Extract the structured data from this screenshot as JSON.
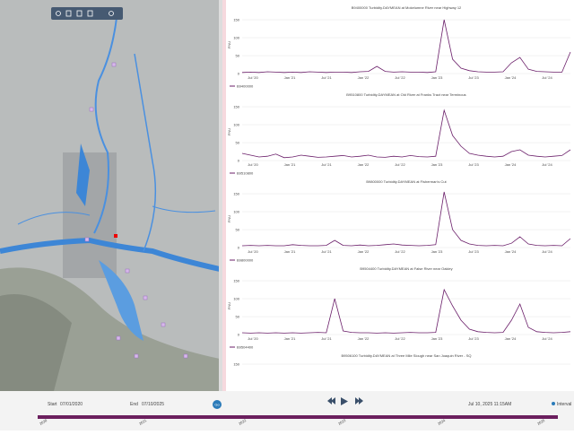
{
  "panels": [
    {
      "title": "B9400000 Turbidity.DAYMEAN at Mokelumne River near Highway 12",
      "legend": "B9400000",
      "y_label": "FNU",
      "ylim": [
        0,
        160
      ],
      "yticks": [
        0,
        50,
        100,
        150
      ],
      "values": [
        3,
        4,
        3,
        5,
        4,
        3,
        4,
        3,
        5,
        4,
        3,
        4,
        4,
        3,
        5,
        6,
        20,
        6,
        4,
        5,
        4,
        4,
        3,
        5,
        150,
        40,
        15,
        8,
        5,
        4,
        4,
        5,
        30,
        45,
        12,
        6,
        5,
        4,
        4,
        60
      ]
    },
    {
      "title": "B9510800 Turbidity.DAYMEAN at Old River at Franks Tract near Terminous",
      "legend": "B9510800",
      "y_label": "FNU",
      "ylim": [
        0,
        160
      ],
      "yticks": [
        0,
        50,
        100,
        150
      ],
      "values": [
        20,
        15,
        10,
        12,
        18,
        8,
        10,
        15,
        12,
        9,
        10,
        12,
        14,
        10,
        12,
        15,
        10,
        9,
        12,
        10,
        14,
        11,
        10,
        12,
        140,
        70,
        40,
        20,
        15,
        12,
        10,
        12,
        25,
        30,
        15,
        12,
        10,
        12,
        14,
        30
      ]
    },
    {
      "title": "B9800000 Turbidity.DAYMEAN at Fisherman's Cut",
      "legend": "B9800000",
      "y_label": "FNU",
      "ylim": [
        0,
        160
      ],
      "yticks": [
        0,
        50,
        100,
        150
      ],
      "values": [
        5,
        6,
        5,
        6,
        5,
        5,
        8,
        6,
        5,
        5,
        6,
        20,
        6,
        5,
        7,
        5,
        6,
        8,
        10,
        7,
        6,
        5,
        6,
        8,
        155,
        50,
        20,
        10,
        6,
        5,
        6,
        5,
        12,
        30,
        10,
        6,
        5,
        6,
        5,
        25
      ]
    },
    {
      "title": "B9504400 Turbidity.DAYMEAN at False River near Oakley",
      "legend": "B9504400",
      "y_label": "FNU",
      "ylim": [
        0,
        160
      ],
      "yticks": [
        0,
        50,
        100,
        150
      ],
      "values": [
        5,
        4,
        5,
        4,
        5,
        4,
        5,
        4,
        5,
        6,
        5,
        100,
        10,
        6,
        5,
        5,
        4,
        5,
        4,
        5,
        6,
        5,
        5,
        6,
        125,
        80,
        40,
        15,
        8,
        6,
        5,
        6,
        40,
        85,
        20,
        8,
        6,
        5,
        6,
        8
      ]
    }
  ],
  "last_panel": {
    "title": "B9506100 Turbidity.DAYMEAN at Three Mile Slough near San Joaquin River - SQ",
    "ytick": 150
  },
  "x_labels": [
    "Jul '20",
    "Jan '21",
    "Jul '21",
    "Jan '22",
    "Jul '22",
    "Jan '23",
    "Jul '23",
    "Jan '24",
    "Jul '24"
  ],
  "controls": {
    "start_label": "Start",
    "start_date": "07/01/2020",
    "end_label": "End",
    "end_date": "07/10/2025",
    "go": "Go",
    "current_time": "Jul 10, 2025 11:15AM",
    "interval": "Interval"
  },
  "timeline": [
    "2020",
    "2021",
    "2022",
    "2023",
    "2024",
    "2025"
  ]
}
